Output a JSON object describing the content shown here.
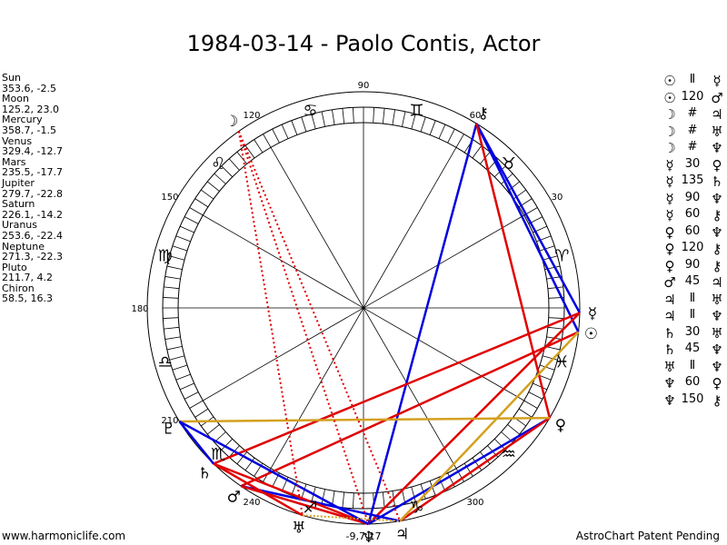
{
  "title": "1984-03-14 - Paolo Contis, Actor",
  "planets": [
    {
      "name": "Sun",
      "position": "353.6, -2.5",
      "glyph": "☉",
      "color": "#000000"
    },
    {
      "name": "Moon",
      "position": "125.2, 23.0",
      "glyph": "☽",
      "color": "#000000"
    },
    {
      "name": "Mercury",
      "position": "358.7, -1.5",
      "glyph": "☿",
      "color": "#000000"
    },
    {
      "name": "Venus",
      "position": "329.4, -12.7",
      "glyph": "♀",
      "color": "#000000"
    },
    {
      "name": "Mars",
      "position": "235.5, -17.7",
      "glyph": "♂",
      "color": "#000000"
    },
    {
      "name": "Jupiter",
      "position": "279.7, -22.8",
      "glyph": "♃",
      "color": "#000000"
    },
    {
      "name": "Saturn",
      "position": "226.1, -14.2",
      "glyph": "♄",
      "color": "#000000"
    },
    {
      "name": "Uranus",
      "position": "253.6, -22.4",
      "glyph": "♅",
      "color": "#000000"
    },
    {
      "name": "Neptune",
      "position": "271.3, -22.3",
      "glyph": "♆",
      "color": "#000000"
    },
    {
      "name": "Pluto",
      "position": "211.7, 4.2",
      "glyph": "♇",
      "color": "#000000"
    },
    {
      "name": "Chiron",
      "position": "58.5, 16.3",
      "glyph": "⚷",
      "color": "#000000"
    }
  ],
  "aspects": [
    {
      "p1": "☉",
      "aspect": "Ⅱ",
      "p2": "☿"
    },
    {
      "p1": "☉",
      "aspect": "120",
      "p2": "♂"
    },
    {
      "p1": "☽",
      "aspect": "#",
      "p2": "♃"
    },
    {
      "p1": "☽",
      "aspect": "#",
      "p2": "♅"
    },
    {
      "p1": "☽",
      "aspect": "#",
      "p2": "♆"
    },
    {
      "p1": "☿",
      "aspect": "30",
      "p2": "♀"
    },
    {
      "p1": "☿",
      "aspect": "135",
      "p2": "♄"
    },
    {
      "p1": "☿",
      "aspect": "90",
      "p2": "♆"
    },
    {
      "p1": "☿",
      "aspect": "60",
      "p2": "⚷"
    },
    {
      "p1": "♀",
      "aspect": "60",
      "p2": "♆"
    },
    {
      "p1": "♀",
      "aspect": "120",
      "p2": "⚷"
    },
    {
      "p1": "♀",
      "aspect": "90",
      "p2": "⚷"
    },
    {
      "p1": "♂",
      "aspect": "45",
      "p2": "♃"
    },
    {
      "p1": "♃",
      "aspect": "Ⅱ",
      "p2": "♅"
    },
    {
      "p1": "♃",
      "aspect": "Ⅱ",
      "p2": "♆"
    },
    {
      "p1": "♄",
      "aspect": "30",
      "p2": "♅"
    },
    {
      "p1": "♄",
      "aspect": "45",
      "p2": "♆"
    },
    {
      "p1": "♅",
      "aspect": "Ⅱ",
      "p2": "♆"
    },
    {
      "p1": "♆",
      "aspect": "60",
      "p2": "♀"
    },
    {
      "p1": "♆",
      "aspect": "150",
      "p2": "⚷"
    }
  ],
  "degree_labels": [
    "30",
    "60",
    "90",
    "120",
    "150",
    "180",
    "210",
    "240",
    "300"
  ],
  "bottom_label": "-9,7,17",
  "zodiac_signs": [
    {
      "name": "aries",
      "glyph": "♈"
    },
    {
      "name": "taurus",
      "glyph": "♉"
    },
    {
      "name": "gemini",
      "glyph": "♊"
    },
    {
      "name": "cancer",
      "glyph": "♋"
    },
    {
      "name": "leo",
      "glyph": "♌"
    },
    {
      "name": "virgo",
      "glyph": "♍"
    },
    {
      "name": "libra",
      "glyph": "♎"
    },
    {
      "name": "scorpio",
      "glyph": "♏"
    },
    {
      "name": "sagittarius",
      "glyph": "♐"
    },
    {
      "name": "capricorn",
      "glyph": "♑"
    },
    {
      "name": "aquarius",
      "glyph": "♒"
    },
    {
      "name": "pisces",
      "glyph": "♓"
    }
  ],
  "colors": {
    "red": "#e00000",
    "blue": "#0000e0",
    "gold": "#d4a020"
  },
  "footer": {
    "left": "www.harmoniclife.com",
    "right": "AstroChart Patent Pending"
  }
}
